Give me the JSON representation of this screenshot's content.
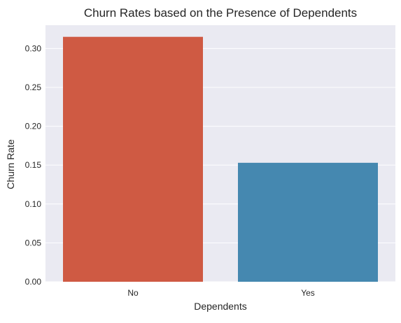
{
  "chart_data": {
    "type": "bar",
    "title": "Churn Rates based on the Presence of Dependents",
    "xlabel": "Dependents",
    "ylabel": "Churn Rate",
    "categories": [
      "No",
      "Yes"
    ],
    "values": [
      0.315,
      0.153
    ],
    "colors": [
      "#cf5a43",
      "#4588b0"
    ],
    "ylim": [
      0,
      0.33
    ],
    "yticks": [
      0.0,
      0.05,
      0.1,
      0.15,
      0.2,
      0.25,
      0.3
    ],
    "ytick_labels": [
      "0.00",
      "0.05",
      "0.10",
      "0.15",
      "0.20",
      "0.25",
      "0.30"
    ],
    "grid": true,
    "plot_background": "#eaeaf2",
    "grid_color": "#ffffff"
  }
}
